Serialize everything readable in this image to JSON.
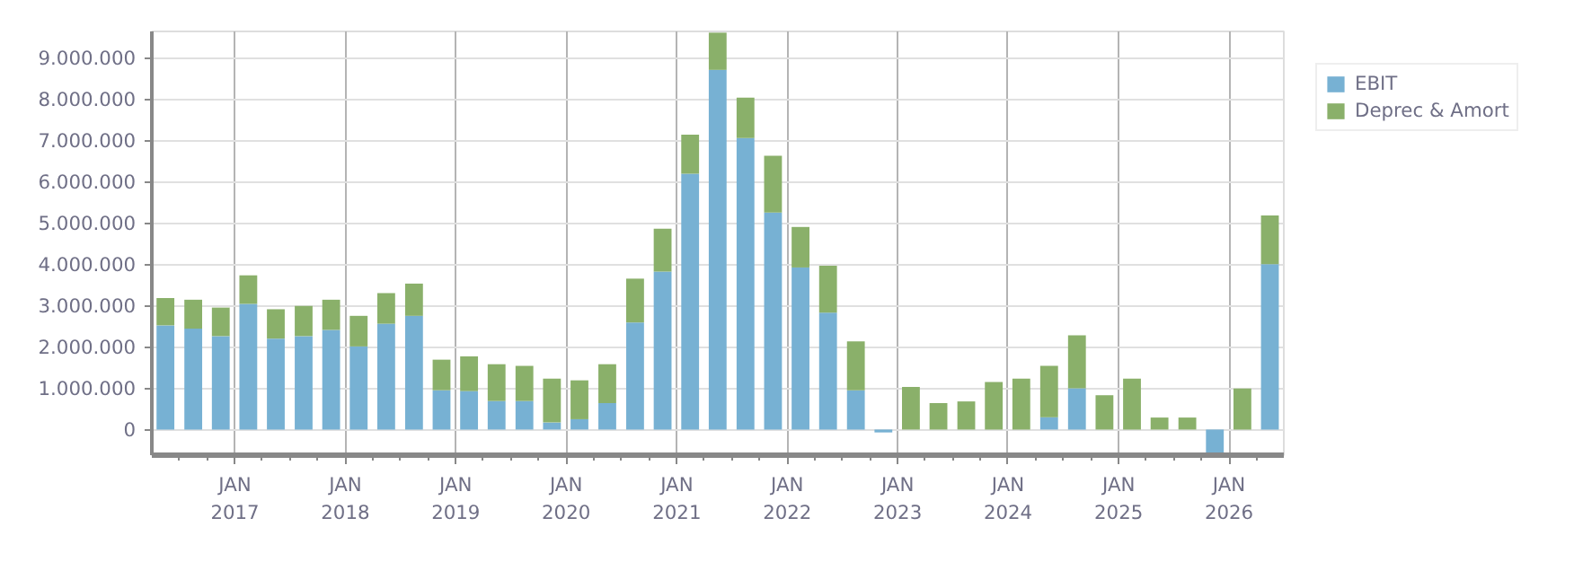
{
  "chart_data": {
    "type": "bar",
    "stacked": true,
    "grid": true,
    "legend": "top right",
    "x": [
      "2016-05-16",
      "2016-08-16",
      "2016-11-15",
      "2017-02-14",
      "2017-05-16",
      "2017-08-16",
      "2017-11-15",
      "2018-02-14",
      "2018-05-16",
      "2018-08-16",
      "2018-11-15",
      "2019-02-14",
      "2019-05-16",
      "2019-08-16",
      "2019-11-15",
      "2020-02-14",
      "2020-05-16",
      "2020-08-16",
      "2020-11-15",
      "2021-02-14",
      "2021-05-16",
      "2021-08-16",
      "2021-11-15",
      "2022-02-14",
      "2022-05-16",
      "2022-08-16",
      "2022-11-15",
      "2023-02-14",
      "2023-05-16",
      "2023-08-16",
      "2023-11-15",
      "2024-02-14",
      "2024-05-16",
      "2024-08-16",
      "2024-11-15",
      "2025-02-14",
      "2025-05-16",
      "2025-08-16",
      "2025-11-15",
      "2026-02-14",
      "2026-05-16"
    ],
    "series": [
      {
        "name": "EBIT",
        "color": "#77b1d3",
        "values": [
          2520000,
          2440000,
          2260000,
          3040000,
          2200000,
          2260000,
          2410000,
          2010000,
          2560000,
          2750000,
          950000,
          930000,
          690000,
          690000,
          170000,
          250000,
          640000,
          2590000,
          3820000,
          6190000,
          8700000,
          7050000,
          5250000,
          3920000,
          2830000,
          950000,
          -70000,
          0,
          0,
          0,
          0,
          0,
          300000,
          1000000,
          0,
          0,
          0,
          0,
          -620000,
          0,
          4000000
        ]
      },
      {
        "name": "Deprec & Amort",
        "color": "#8ab06a",
        "values": [
          660000,
          700000,
          690000,
          690000,
          710000,
          730000,
          730000,
          740000,
          740000,
          780000,
          740000,
          840000,
          890000,
          850000,
          1060000,
          940000,
          940000,
          1060000,
          1040000,
          940000,
          900000,
          980000,
          1370000,
          980000,
          1130000,
          1180000,
          0,
          1030000,
          640000,
          680000,
          1150000,
          1230000,
          1240000,
          1280000,
          830000,
          1230000,
          290000,
          290000,
          0,
          990000,
          1180000
        ]
      }
    ],
    "ylim": [
      -620000,
      9630000
    ],
    "yticks": [
      {
        "value": 0,
        "label": "0"
      },
      {
        "value": 1000000,
        "label": "1.000.000"
      },
      {
        "value": 2000000,
        "label": "2.000.000"
      },
      {
        "value": 3000000,
        "label": "3.000.000"
      },
      {
        "value": 4000000,
        "label": "4.000.000"
      },
      {
        "value": 5000000,
        "label": "5.000.000"
      },
      {
        "value": 6000000,
        "label": "6.000.000"
      },
      {
        "value": 7000000,
        "label": "7.000.000"
      },
      {
        "value": 8000000,
        "label": "8.000.000"
      },
      {
        "value": 9000000,
        "label": "9.000.000"
      }
    ],
    "xlim": [
      "2016-04-01",
      "2026-07-01"
    ],
    "xticks": [
      {
        "value": "2016-07-01",
        "label": null
      },
      {
        "value": "2016-10-01",
        "label": null
      },
      {
        "value": "2017-01-01",
        "label": "JAN\n2017"
      },
      {
        "value": "2017-04-01",
        "label": null
      },
      {
        "value": "2017-07-01",
        "label": null
      },
      {
        "value": "2017-10-01",
        "label": null
      },
      {
        "value": "2018-01-01",
        "label": "JAN\n2018"
      },
      {
        "value": "2018-04-01",
        "label": null
      },
      {
        "value": "2018-07-01",
        "label": null
      },
      {
        "value": "2018-10-01",
        "label": null
      },
      {
        "value": "2019-01-01",
        "label": "JAN\n2019"
      },
      {
        "value": "2019-04-01",
        "label": null
      },
      {
        "value": "2019-07-01",
        "label": null
      },
      {
        "value": "2019-10-01",
        "label": null
      },
      {
        "value": "2020-01-01",
        "label": "JAN\n2020"
      },
      {
        "value": "2020-04-01",
        "label": null
      },
      {
        "value": "2020-07-01",
        "label": null
      },
      {
        "value": "2020-10-01",
        "label": null
      },
      {
        "value": "2021-01-01",
        "label": "JAN\n2021"
      },
      {
        "value": "2021-04-01",
        "label": null
      },
      {
        "value": "2021-07-01",
        "label": null
      },
      {
        "value": "2021-10-01",
        "label": null
      },
      {
        "value": "2022-01-01",
        "label": "JAN\n2022"
      },
      {
        "value": "2022-04-01",
        "label": null
      },
      {
        "value": "2022-07-01",
        "label": null
      },
      {
        "value": "2022-10-01",
        "label": null
      },
      {
        "value": "2023-01-01",
        "label": "JAN\n2023"
      },
      {
        "value": "2023-04-01",
        "label": null
      },
      {
        "value": "2023-07-01",
        "label": null
      },
      {
        "value": "2023-10-01",
        "label": null
      },
      {
        "value": "2024-01-01",
        "label": "JAN\n2024"
      },
      {
        "value": "2024-04-01",
        "label": null
      },
      {
        "value": "2024-07-01",
        "label": null
      },
      {
        "value": "2024-10-01",
        "label": null
      },
      {
        "value": "2025-01-01",
        "label": "JAN\n2025"
      },
      {
        "value": "2025-04-01",
        "label": null
      },
      {
        "value": "2025-07-01",
        "label": null
      },
      {
        "value": "2025-10-01",
        "label": null
      },
      {
        "value": "2026-01-01",
        "label": "JAN\n2026"
      },
      {
        "value": "2026-04-01",
        "label": null
      }
    ]
  }
}
